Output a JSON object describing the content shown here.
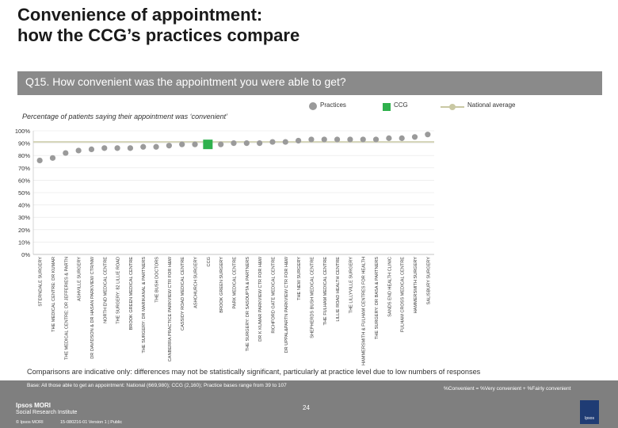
{
  "slide": {
    "title_line1": "Convenience of appointment:",
    "title_line2": "how the CCG’s practices compare",
    "question": "Q15. How convenient was the appointment you were able to get?",
    "subtitle": "Percentage of patients saying their appointment was ‘convenient’",
    "legend": {
      "practices": "Practices",
      "ccg": "CCG",
      "national": "National average"
    },
    "note": "Comparisons are indicative only: differences may not be statistically significant, particularly at practice level due to low numbers of responses",
    "base_note": "Base: All those able to get an appointment: National (669,980); CCG (2,160); Practice bases range from 39 to 107",
    "calc_note": "%Convenient = %Very convenient + %Fairly convenient",
    "page_number": "24",
    "brand": "Ipsos MORI",
    "brand_sub": "Social Research Institute",
    "copyright": "© Ipsos MORI",
    "job_ref": "15-080216-01 Version 1 | Public",
    "logo_text": "Ipsos"
  },
  "colors": {
    "practice": "#9a9a9a",
    "ccg": "#2fb14d",
    "national": "#c9c8a3",
    "question_bar": "#8a8a8a",
    "footer": "#7f7f7f"
  },
  "chart_data": {
    "type": "scatter",
    "ylim": [
      0,
      100
    ],
    "yticks": [
      "0%",
      "10%",
      "20%",
      "30%",
      "40%",
      "50%",
      "60%",
      "70%",
      "80%",
      "90%",
      "100%"
    ],
    "national_average": 91,
    "categories": [
      "STERNDALE SURGERY",
      "THE MEDICAL CENTRE: DR KUMAR",
      "THE MEDICAL CENTRE: DR JEFFERIES & PARTN",
      "ASHVILLE SURGERY",
      "DR DAVIDSON & DR HASAN PARKVIEW CTR/NW",
      "NORTH END MEDICAL CENTRE",
      "THE SURGERY: 82 LILLIE ROAD",
      "BROOK GREEN MEDICAL CENTRE",
      "THE SURGERY: DR MARIKANAL & PARTNERS",
      "THE BUSH DOCTORS",
      "CANBERRA PRACTICE PARKVIEW CTR FOR H&W",
      "CASSIDY ROAD MEDICAL CENTRE",
      "ASHCHURCH SURGERY",
      "CCG",
      "BROOK GREEN SURGERY",
      "PARK MEDICAL CENTRE",
      "THE SURGERY: DR SASOUPTA & PARTNERS",
      "DR K KUMAR PARKVIEW CTR FOR H&W",
      "RICHFORD GATE MEDICAL CENTRE",
      "DR UPPAL&PARTN PARKVIEW CTR FOR H&W",
      "THE NEW SURGERY",
      "SHEPHERDS BUSH MEDICAL CENTRE",
      "THE FULHAM MEDICAL CENTRE",
      "LILLIE ROAD HEALTH CENTRE",
      "THE LILLYVILLE SURGERY",
      "HAMMERSMITH & FULHAM CENTRES FOR HEALTH",
      "THE SURGERY: DR BASA & PARTNERS",
      "SANDS END HEALTH CLINIC",
      "FULHAM CROSS MEDICAL CENTRE",
      "HAMMERSMITH SURGERY",
      "SALISBURY SURGERY"
    ],
    "values": [
      76,
      78,
      82,
      84,
      85,
      86,
      86,
      86,
      87,
      87,
      88,
      89,
      89,
      89,
      89,
      90,
      90,
      90,
      91,
      91,
      92,
      93,
      93,
      93,
      93,
      93,
      93,
      94,
      94,
      95,
      97
    ],
    "ccg_index": 13
  }
}
